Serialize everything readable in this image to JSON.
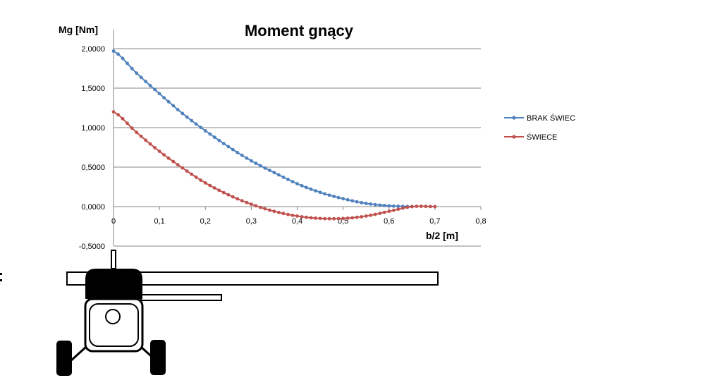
{
  "chart_data": {
    "type": "line",
    "title": "Moment gnący",
    "xlabel": "b/2 [m]",
    "ylabel": "Mg [Nm]",
    "xlim": [
      0,
      0.8
    ],
    "ylim": [
      -0.5,
      2.0
    ],
    "xticks": [
      "0",
      "0,1",
      "0,2",
      "0,3",
      "0,4",
      "0,5",
      "0,6",
      "0,7",
      "0,8"
    ],
    "yticks": [
      "-0,5000",
      "0,0000",
      "0,5000",
      "1,0000",
      "1,5000",
      "2,0000"
    ],
    "grid": true,
    "legend_position": "right",
    "series": [
      {
        "name": "BRAK ŚWIEC",
        "color": "#4F81BD",
        "x": [
          0,
          0.05,
          0.1,
          0.15,
          0.2,
          0.25,
          0.3,
          0.35,
          0.4,
          0.45,
          0.5,
          0.55,
          0.6,
          0.65
        ],
        "y": [
          1.97,
          1.69,
          1.43,
          1.18,
          0.96,
          0.76,
          0.58,
          0.43,
          0.29,
          0.18,
          0.1,
          0.04,
          0.01,
          0.0
        ]
      },
      {
        "name": "ŚWIECE",
        "color": "#C0504D",
        "x": [
          0,
          0.05,
          0.1,
          0.15,
          0.2,
          0.25,
          0.3,
          0.35,
          0.4,
          0.45,
          0.5,
          0.55,
          0.6,
          0.65,
          0.7
        ],
        "y": [
          1.2,
          0.94,
          0.7,
          0.49,
          0.3,
          0.15,
          0.03,
          -0.06,
          -0.12,
          -0.15,
          -0.15,
          -0.12,
          -0.06,
          0.0,
          0.0
        ]
      }
    ]
  }
}
